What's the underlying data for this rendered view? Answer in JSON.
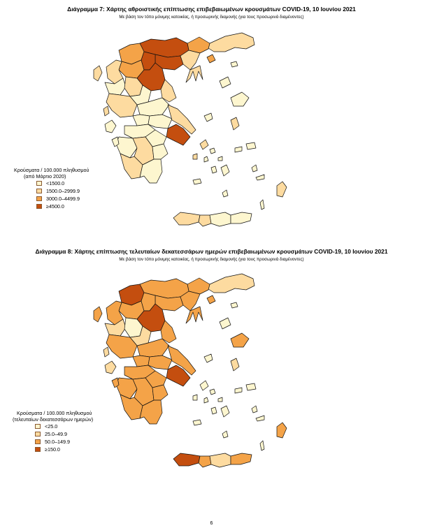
{
  "diagram7": {
    "title": "Διάγραμμα 7: Χάρτης αθροιστικής επίπτωσης επιβεβαιωμένων κρουσμάτων COVID-19, 10 Ιουνίου 2021",
    "subtitle": "Με βάση τον τόπο μόνιμης κατοικίας, ή προσωρινής διαμονής (για τους προσωρινά διαμένοντες)",
    "legend": {
      "title_line1": "Κρούσματα / 100.000 πληθυσμού",
      "title_line2": "(από Μάρτιο 2020)",
      "items": [
        {
          "label": "<1500.0",
          "color": "#fdf6cf"
        },
        {
          "label": "1500.0–2999.9",
          "color": "#fddba0"
        },
        {
          "label": "3000.0–4499.9",
          "color": "#f4a348"
        },
        {
          "label": "≥4500.0",
          "color": "#c44e0f"
        }
      ]
    }
  },
  "diagram8": {
    "title": "Διάγραμμα 8: Χάρτης επίπτωσης τελευταίων δεκατεσσάρων ημερών επιβεβαιωμένων κρουσμάτων COVID-19, 10 Ιουνίου 2021",
    "subtitle": "Με βάση τον τόπο μόνιμης κατοικίας, ή προσωρινής διαμονής (για τους προσωρινά διαμένοντες)",
    "legend": {
      "title_line1": "Κρούσματα / 100.000 πληθυσμού",
      "title_line2": "(τελευταίων δεκατεσσάρων ημερών)",
      "items": [
        {
          "label": "<25.0",
          "color": "#fdf6cf"
        },
        {
          "label": "25.0–49.9",
          "color": "#fddba0"
        },
        {
          "label": "50.0–149.9",
          "color": "#f4a348"
        },
        {
          "label": "≥150.0",
          "color": "#c44e0f"
        }
      ]
    }
  },
  "page_number": "6"
}
